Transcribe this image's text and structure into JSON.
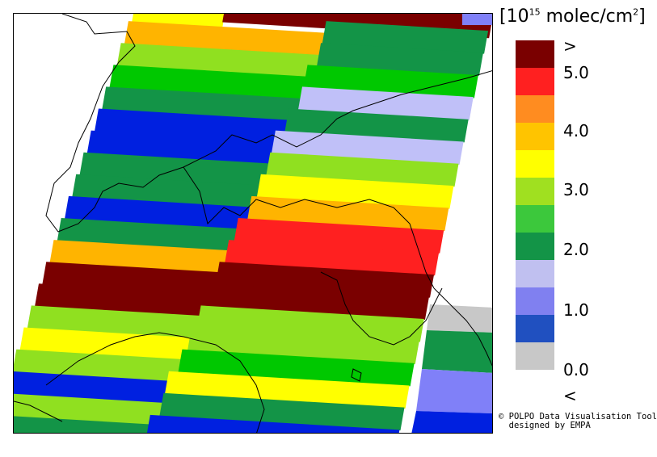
{
  "legend": {
    "title_prefix": "[10",
    "title_exp": "15",
    "title_suffix": " molec/cm",
    "title_exp2": "2",
    "title_close": "]",
    "ticks": [
      ">",
      "5.0",
      "4.0",
      "3.0",
      "2.0",
      "1.0",
      "0.0",
      "<"
    ],
    "colors": [
      "#7a0000",
      "#ff2020",
      "#ff8c20",
      "#ffc400",
      "#ffff00",
      "#a0e020",
      "#3cc83c",
      "#139447",
      "#c0c0f0",
      "#8080f0",
      "#2050c0",
      "#c8c8c8"
    ]
  },
  "palette": {
    "darkred": "#7a0000",
    "red": "#ff2020",
    "orange": "#ffb400",
    "yellow": "#ffff00",
    "lightgreen": "#90e020",
    "green": "#00c800",
    "darkgreen": "#139447",
    "lavender": "#c0c0f8",
    "periwinkle": "#8080f8",
    "blue": "#0020e0",
    "grey": "#c8c8c8"
  },
  "credit": {
    "line1": "© POLPO Data Visualisation Tool",
    "line2": "  designed by EMPA"
  }
}
